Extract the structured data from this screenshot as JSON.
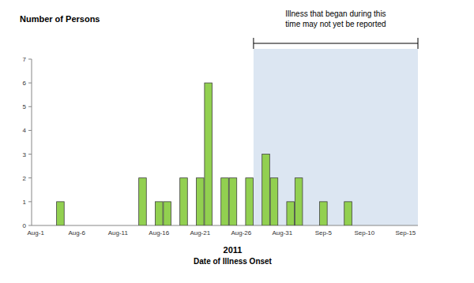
{
  "chart_data": {
    "type": "bar",
    "y_label": "Number of Persons",
    "x_label": [
      "2011",
      "Date of Illness Onset"
    ],
    "categories": [
      "Aug-1",
      null,
      null,
      null,
      null,
      "Aug-6",
      null,
      null,
      null,
      null,
      "Aug-11",
      null,
      null,
      null,
      null,
      "Aug-16",
      null,
      null,
      null,
      null,
      "Aug-21",
      null,
      null,
      null,
      null,
      "Aug-26",
      null,
      null,
      null,
      null,
      "Aug-31",
      null,
      null,
      null,
      null,
      "Sep-5",
      null,
      null,
      null,
      null,
      "Sep-10",
      null,
      null,
      null,
      null,
      "Sep-15",
      null
    ],
    "values": [
      0,
      0,
      0,
      1,
      0,
      0,
      0,
      0,
      0,
      0,
      0,
      0,
      0,
      2,
      0,
      1,
      1,
      0,
      2,
      0,
      2,
      6,
      0,
      2,
      2,
      0,
      2,
      0,
      3,
      2,
      0,
      1,
      2,
      0,
      0,
      1,
      0,
      0,
      1,
      0,
      0,
      0,
      0,
      0,
      0,
      0,
      0
    ],
    "color": "#92d050",
    "ylim": [
      0,
      7
    ],
    "yticks": [
      0,
      1,
      2,
      3,
      4,
      5,
      6,
      7
    ],
    "grid": false,
    "annotation": {
      "text": [
        "Illness that began during this",
        "time may not yet be reported"
      ],
      "start": 27,
      "end": 46
    }
  }
}
